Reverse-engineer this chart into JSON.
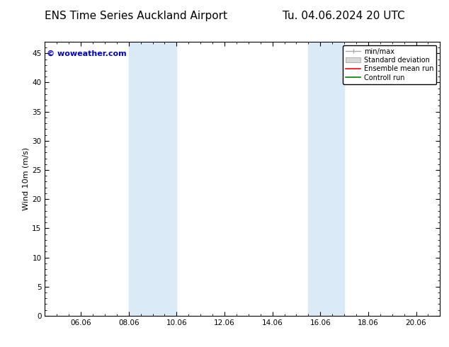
{
  "title_left": "ENS Time Series Auckland Airport",
  "title_right": "Tu. 04.06.2024 20 UTC",
  "ylabel": "Wind 10m (m/s)",
  "ylim": [
    0,
    47
  ],
  "yticks": [
    0,
    5,
    10,
    15,
    20,
    25,
    30,
    35,
    40,
    45
  ],
  "xtick_labels": [
    "06.06",
    "08.06",
    "10.06",
    "12.06",
    "14.06",
    "16.06",
    "18.06",
    "20.06"
  ],
  "xtick_positions": [
    6,
    8,
    10,
    12,
    14,
    16,
    18,
    20
  ],
  "xlim": [
    4.5,
    21.0
  ],
  "shaded_bands": [
    {
      "x_start": 8.0,
      "x_end": 10.0
    },
    {
      "x_start": 15.5,
      "x_end": 17.0
    }
  ],
  "shade_color": "#daeaf7",
  "bg_color": "#ffffff",
  "plot_bg_color": "#ffffff",
  "watermark_text": "© woweather.com",
  "watermark_color": "#0000cc",
  "watermark_fontsize": 8,
  "legend_labels": [
    "min/max",
    "Standard deviation",
    "Ensemble mean run",
    "Controll run"
  ],
  "legend_colors": [
    "#aaaaaa",
    "#cccccc",
    "#ff0000",
    "#008000"
  ],
  "title_fontsize": 11,
  "axis_fontsize": 8,
  "tick_fontsize": 7.5,
  "spine_color": "#000000"
}
